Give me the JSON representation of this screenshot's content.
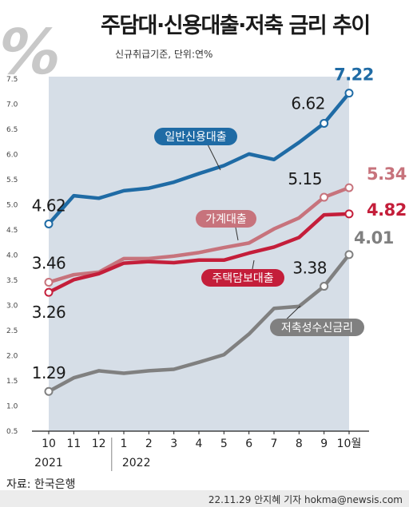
{
  "header": {
    "title": "주담대·신용대출·저축 금리 추이",
    "subtitle": "신규취급기준, 단위:연%",
    "logo_text": "%"
  },
  "footer": {
    "source": "자료: 한국은행",
    "credit": "22.11.29 안지혜 기자 hokma@newsis.com"
  },
  "colors": {
    "background_panel": "#d6dee7",
    "credit_loan": "#1f6ba5",
    "household": "#c7737c",
    "mortgage": "#c41e3a",
    "savings": "#808080",
    "logo": "#c8c8c8"
  },
  "chart_data": {
    "type": "line",
    "categories": [
      "10",
      "11",
      "12",
      "1",
      "2",
      "3",
      "4",
      "5",
      "6",
      "7",
      "8",
      "9",
      "10월"
    ],
    "year_labels": [
      "2021",
      "2022"
    ],
    "ylim": [
      0.5,
      7.5
    ],
    "yticks": [
      "0.5",
      "1.0",
      "1.5",
      "2.0",
      "2.5",
      "3.0",
      "3.5",
      "4.0",
      "4.5",
      "5.0",
      "5.5",
      "6.0",
      "6.5",
      "7.0",
      "7.5"
    ],
    "grid": false,
    "series": [
      {
        "name": "일반신용대출",
        "color": "#1f6ba5",
        "values": [
          4.62,
          5.18,
          5.13,
          5.28,
          5.33,
          5.45,
          5.62,
          5.78,
          6.01,
          5.9,
          6.24,
          6.62,
          7.22
        ],
        "labels": [
          {
            "index": 0,
            "text": "4.62"
          },
          {
            "index": 11,
            "text": "6.62"
          },
          {
            "index": 12,
            "text": "7.22"
          }
        ]
      },
      {
        "name": "가계대출",
        "color": "#c7737c",
        "values": [
          3.46,
          3.61,
          3.66,
          3.93,
          3.93,
          3.98,
          4.05,
          4.15,
          4.24,
          4.52,
          4.74,
          5.15,
          5.34
        ],
        "labels": [
          {
            "index": 0,
            "text": "3.46"
          },
          {
            "index": 11,
            "text": "5.15"
          },
          {
            "index": 12,
            "text": "5.34"
          }
        ]
      },
      {
        "name": "주택담보대출",
        "color": "#c41e3a",
        "values": [
          3.26,
          3.51,
          3.63,
          3.84,
          3.87,
          3.85,
          3.9,
          3.9,
          4.04,
          4.16,
          4.35,
          4.8,
          4.82
        ],
        "labels": [
          {
            "index": 0,
            "text": "3.26"
          },
          {
            "index": 12,
            "text": "4.82"
          }
        ]
      },
      {
        "name": "저축성수신금리",
        "color": "#808080",
        "values": [
          1.29,
          1.56,
          1.7,
          1.65,
          1.7,
          1.73,
          1.87,
          2.02,
          2.43,
          2.94,
          2.98,
          3.38,
          4.01
        ],
        "labels": [
          {
            "index": 0,
            "text": "1.29"
          },
          {
            "index": 11,
            "text": "3.38"
          },
          {
            "index": 12,
            "text": "4.01"
          }
        ]
      }
    ]
  }
}
